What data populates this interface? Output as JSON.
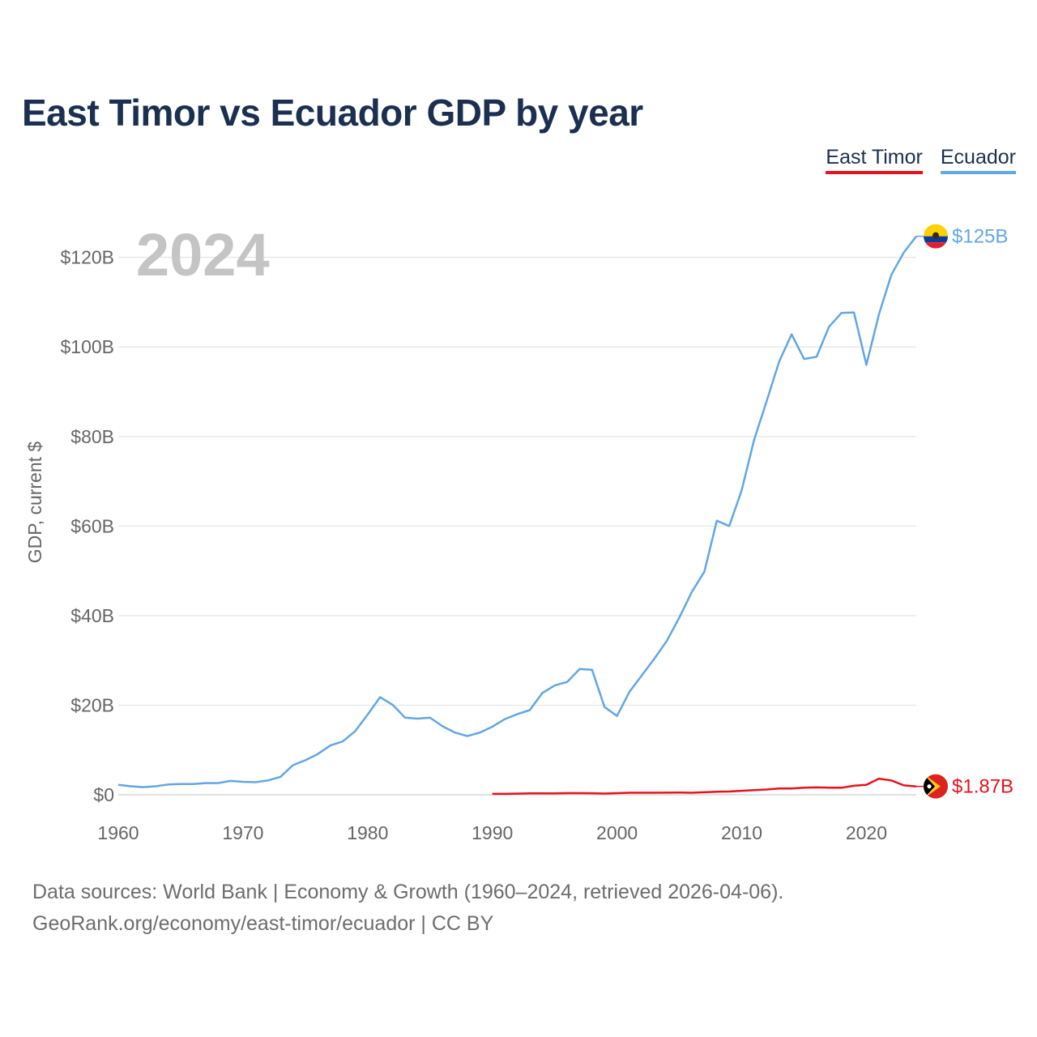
{
  "title": "East Timor vs Ecuador GDP by year",
  "legend": [
    {
      "name": "East Timor",
      "color": "#e8111d"
    },
    {
      "name": "Ecuador",
      "color": "#63a6e3"
    }
  ],
  "year_label": "2024",
  "footer": {
    "line1": "Data sources: World Bank | Economy & Growth (1960–2024, retrieved 2026-04-06).",
    "line2": "GeoRank.org/economy/east-timor/ecuador | CC BY"
  },
  "chart_data": {
    "type": "line",
    "title": "East Timor vs Ecuador GDP by year",
    "xlabel": "",
    "ylabel": "GDP, current $",
    "xlim": [
      1960,
      2024
    ],
    "ylim": [
      0,
      125
    ],
    "unit": "billion USD",
    "x_ticks": [
      1960,
      1970,
      1980,
      1990,
      2000,
      2010,
      2020
    ],
    "x_tick_labels": [
      "1960",
      "1970",
      "1980",
      "1990",
      "2000",
      "2010",
      "2020"
    ],
    "y_ticks": [
      0,
      20,
      40,
      60,
      80,
      100,
      120
    ],
    "y_tick_labels": [
      "$0",
      "$20B",
      "$40B",
      "$60B",
      "$80B",
      "$100B",
      "$120B"
    ],
    "grid": true,
    "series": [
      {
        "name": "Ecuador",
        "color": "#63a6e3",
        "end_label": "$125B",
        "points": [
          [
            1960,
            2.2
          ],
          [
            1961,
            1.9
          ],
          [
            1962,
            1.7
          ],
          [
            1963,
            1.9
          ],
          [
            1964,
            2.3
          ],
          [
            1965,
            2.4
          ],
          [
            1966,
            2.4
          ],
          [
            1967,
            2.6
          ],
          [
            1968,
            2.6
          ],
          [
            1969,
            3.1
          ],
          [
            1970,
            2.9
          ],
          [
            1971,
            2.8
          ],
          [
            1972,
            3.2
          ],
          [
            1973,
            4.0
          ],
          [
            1974,
            6.6
          ],
          [
            1975,
            7.7
          ],
          [
            1976,
            9.1
          ],
          [
            1977,
            11.0
          ],
          [
            1978,
            11.9
          ],
          [
            1979,
            14.2
          ],
          [
            1980,
            17.9
          ],
          [
            1981,
            21.8
          ],
          [
            1982,
            20.1
          ],
          [
            1983,
            17.2
          ],
          [
            1984,
            17.0
          ],
          [
            1985,
            17.2
          ],
          [
            1986,
            15.3
          ],
          [
            1987,
            13.9
          ],
          [
            1988,
            13.1
          ],
          [
            1989,
            13.9
          ],
          [
            1990,
            15.2
          ],
          [
            1991,
            16.9
          ],
          [
            1992,
            18.0
          ],
          [
            1993,
            18.9
          ],
          [
            1994,
            22.7
          ],
          [
            1995,
            24.4
          ],
          [
            1996,
            25.2
          ],
          [
            1997,
            28.1
          ],
          [
            1998,
            27.9
          ],
          [
            1999,
            19.6
          ],
          [
            2000,
            17.6
          ],
          [
            2001,
            23.0
          ],
          [
            2002,
            26.7
          ],
          [
            2003,
            30.4
          ],
          [
            2004,
            34.4
          ],
          [
            2005,
            39.6
          ],
          [
            2006,
            45.3
          ],
          [
            2007,
            49.8
          ],
          [
            2008,
            61.2
          ],
          [
            2009,
            60.0
          ],
          [
            2010,
            68.0
          ],
          [
            2011,
            79.3
          ],
          [
            2012,
            87.9
          ],
          [
            2013,
            96.7
          ],
          [
            2014,
            102.8
          ],
          [
            2015,
            97.3
          ],
          [
            2016,
            97.8
          ],
          [
            2017,
            104.5
          ],
          [
            2018,
            107.6
          ],
          [
            2019,
            107.7
          ],
          [
            2020,
            96.0
          ],
          [
            2021,
            107.2
          ],
          [
            2022,
            116.1
          ],
          [
            2023,
            121.1
          ],
          [
            2024,
            124.7
          ]
        ]
      },
      {
        "name": "East Timor",
        "color": "#e8111d",
        "end_label": "$1.87B",
        "points": [
          [
            1990,
            0.2
          ],
          [
            1991,
            0.2
          ],
          [
            1992,
            0.25
          ],
          [
            1993,
            0.3
          ],
          [
            1994,
            0.3
          ],
          [
            1995,
            0.33
          ],
          [
            1996,
            0.37
          ],
          [
            1997,
            0.37
          ],
          [
            1998,
            0.35
          ],
          [
            1999,
            0.27
          ],
          [
            2000,
            0.37
          ],
          [
            2001,
            0.45
          ],
          [
            2002,
            0.46
          ],
          [
            2003,
            0.45
          ],
          [
            2004,
            0.47
          ],
          [
            2005,
            0.48
          ],
          [
            2006,
            0.45
          ],
          [
            2007,
            0.56
          ],
          [
            2008,
            0.68
          ],
          [
            2009,
            0.73
          ],
          [
            2010,
            0.89
          ],
          [
            2011,
            1.05
          ],
          [
            2012,
            1.17
          ],
          [
            2013,
            1.4
          ],
          [
            2014,
            1.4
          ],
          [
            2015,
            1.6
          ],
          [
            2016,
            1.65
          ],
          [
            2017,
            1.6
          ],
          [
            2018,
            1.58
          ],
          [
            2019,
            2.0
          ],
          [
            2020,
            2.2
          ],
          [
            2021,
            3.6
          ],
          [
            2022,
            3.2
          ],
          [
            2023,
            2.1
          ],
          [
            2024,
            1.87
          ]
        ]
      }
    ]
  }
}
